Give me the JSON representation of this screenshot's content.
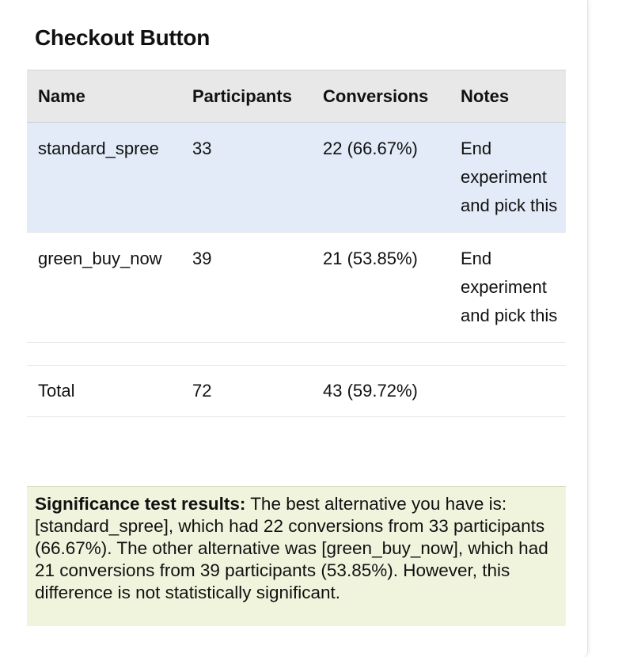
{
  "experiment": {
    "title": "Checkout Button"
  },
  "table": {
    "headers": {
      "name": "Name",
      "participants": "Participants",
      "conversions": "Conversions",
      "notes": "Notes"
    },
    "rows": [
      {
        "name": "standard_spree",
        "participants": "33",
        "conversions": "22 (66.67%)",
        "notes": "End experiment and pick this"
      },
      {
        "name": "green_buy_now",
        "participants": "39",
        "conversions": "21 (53.85%)",
        "notes": "End experiment and pick this"
      }
    ],
    "total": {
      "label": "Total",
      "participants": "72",
      "conversions": "43 (59.72%)"
    }
  },
  "significance": {
    "label": "Significance test results:",
    "text": " The best alternative you have is: [standard_spree], which had 22 conversions from 33 participants (66.67%). The other alternative was [green_buy_now], which had 21 conversions from 39 participants (53.85%). However, this difference is not statistically significant."
  },
  "colors": {
    "highlight_row": "#e2ebf7",
    "header_bg": "#e8e8e8",
    "significance_bg": "#f1f4dd"
  }
}
